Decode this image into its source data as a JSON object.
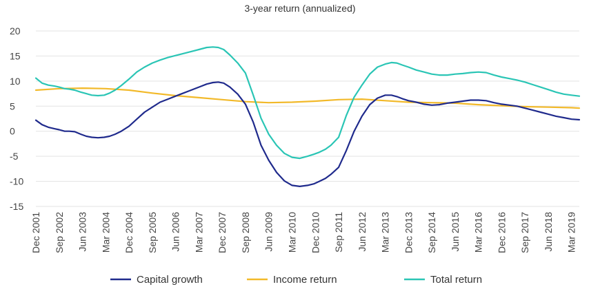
{
  "chart_data": {
    "type": "line",
    "title": "3-year return (annualized)",
    "xlabel": "",
    "ylabel": "",
    "ylim": [
      -15,
      20
    ],
    "yticks": [
      20,
      15,
      10,
      5,
      0,
      -5,
      -10,
      -15
    ],
    "ytick_labels": [
      "20",
      "15",
      "10",
      "5",
      "0",
      "-5",
      "-10",
      "-15"
    ],
    "grid": true,
    "legend_position": "bottom",
    "x_tick_labels": [
      "Dec 2001",
      "Sep 2002",
      "Jun 2003",
      "Mar 2004",
      "Dec 2004",
      "Sep 2005",
      "Jun 2006",
      "Mar 2007",
      "Dec 2007",
      "Sep 2008",
      "Jun 2009",
      "Mar 2010",
      "Dec 2010",
      "Sep 2011",
      "Jun 2012",
      "Mar 2013",
      "Dec 2013",
      "Sep 2014",
      "Jun 2015",
      "Mar 2016",
      "Dec 2016",
      "Sep 2017",
      "Jun 2018",
      "Mar 2019"
    ],
    "x_tick_positions": [
      0,
      3,
      6,
      9,
      12,
      15,
      18,
      21,
      24,
      27,
      30,
      33,
      36,
      39,
      42,
      45,
      48,
      51,
      54,
      57,
      60,
      63,
      66,
      69
    ],
    "x_end": 70,
    "series": [
      {
        "name": "Capital growth",
        "color": "#1f2a8c",
        "x": [
          0,
          0.8,
          1.6,
          2.4,
          3,
          3.7,
          4.3,
          5,
          5.8,
          6.5,
          7.2,
          8,
          8.8,
          9.5,
          10.2,
          11,
          12,
          13,
          14,
          15,
          16,
          17,
          18,
          19,
          20,
          21,
          22,
          22.8,
          23.5,
          24.2,
          25,
          26,
          27,
          28,
          29,
          30,
          31,
          32,
          33,
          34,
          35,
          35.8,
          36.5,
          37.3,
          38,
          39,
          40,
          41,
          42,
          43,
          44,
          45,
          45.8,
          46.5,
          47.2,
          48,
          49,
          50,
          51,
          52,
          53,
          54,
          55,
          56,
          57,
          58,
          59,
          60,
          61,
          62,
          63,
          64,
          65,
          66,
          67,
          68,
          69,
          70
        ],
        "values": [
          2.2,
          1.3,
          0.8,
          0.5,
          0.3,
          0.0,
          0.0,
          -0.1,
          -0.6,
          -1.0,
          -1.2,
          -1.3,
          -1.2,
          -1.0,
          -0.6,
          0.0,
          1.0,
          2.4,
          3.8,
          4.8,
          5.8,
          6.4,
          7.0,
          7.6,
          8.2,
          8.8,
          9.4,
          9.7,
          9.8,
          9.6,
          8.8,
          7.4,
          5.4,
          1.8,
          -2.8,
          -5.8,
          -8.2,
          -9.9,
          -10.8,
          -11.0,
          -10.8,
          -10.5,
          -10.0,
          -9.4,
          -8.6,
          -7.2,
          -3.8,
          0.0,
          3.0,
          5.3,
          6.6,
          7.2,
          7.2,
          6.9,
          6.5,
          6.1,
          5.8,
          5.4,
          5.2,
          5.3,
          5.6,
          5.8,
          6.0,
          6.2,
          6.2,
          6.1,
          5.7,
          5.4,
          5.2,
          5.0,
          4.6,
          4.2,
          3.8,
          3.4,
          3.0,
          2.7,
          2.4,
          2.3
        ]
      },
      {
        "name": "Income return",
        "color": "#f2b929",
        "x": [
          0,
          3,
          6,
          9,
          12,
          15,
          18,
          21,
          24,
          27,
          30,
          33,
          36,
          39,
          42,
          45,
          48,
          51,
          54,
          57,
          60,
          63,
          66,
          69,
          70
        ],
        "values": [
          8.2,
          8.5,
          8.6,
          8.5,
          8.2,
          7.6,
          7.1,
          6.7,
          6.3,
          5.9,
          5.7,
          5.8,
          6.0,
          6.3,
          6.4,
          6.1,
          5.8,
          5.7,
          5.6,
          5.3,
          5.1,
          4.9,
          4.8,
          4.7,
          4.6
        ]
      },
      {
        "name": "Total return",
        "color": "#2ac5b5",
        "x": [
          0,
          0.8,
          1.6,
          2.4,
          3,
          3.7,
          4.3,
          5,
          5.8,
          6.5,
          7.2,
          8,
          8.8,
          9.5,
          10.2,
          11,
          12,
          13,
          14,
          15,
          16,
          17,
          18,
          19,
          20,
          21,
          22,
          22.8,
          23.5,
          24.2,
          25,
          26,
          27,
          28,
          29,
          30,
          31,
          32,
          33,
          34,
          35,
          35.8,
          36.5,
          37.3,
          38,
          39,
          40,
          41,
          42,
          43,
          44,
          45,
          45.8,
          46.5,
          47.2,
          48,
          49,
          50,
          51,
          52,
          53,
          54,
          55,
          56,
          57,
          58,
          59,
          60,
          61,
          62,
          63,
          64,
          65,
          66,
          67,
          68,
          69,
          70
        ],
        "values": [
          10.6,
          9.6,
          9.2,
          9.0,
          8.8,
          8.5,
          8.4,
          8.2,
          7.8,
          7.5,
          7.2,
          7.1,
          7.2,
          7.6,
          8.2,
          9.1,
          10.4,
          11.8,
          12.8,
          13.6,
          14.2,
          14.7,
          15.1,
          15.5,
          15.9,
          16.3,
          16.7,
          16.8,
          16.7,
          16.3,
          15.2,
          13.6,
          11.6,
          7.2,
          2.6,
          -0.6,
          -2.8,
          -4.4,
          -5.2,
          -5.4,
          -5.0,
          -4.6,
          -4.2,
          -3.6,
          -2.8,
          -1.2,
          3.2,
          6.8,
          9.2,
          11.4,
          12.8,
          13.4,
          13.7,
          13.6,
          13.2,
          12.8,
          12.2,
          11.8,
          11.4,
          11.2,
          11.2,
          11.4,
          11.5,
          11.7,
          11.8,
          11.7,
          11.2,
          10.8,
          10.5,
          10.2,
          9.8,
          9.3,
          8.8,
          8.3,
          7.8,
          7.4,
          7.2,
          7.0
        ]
      }
    ]
  }
}
